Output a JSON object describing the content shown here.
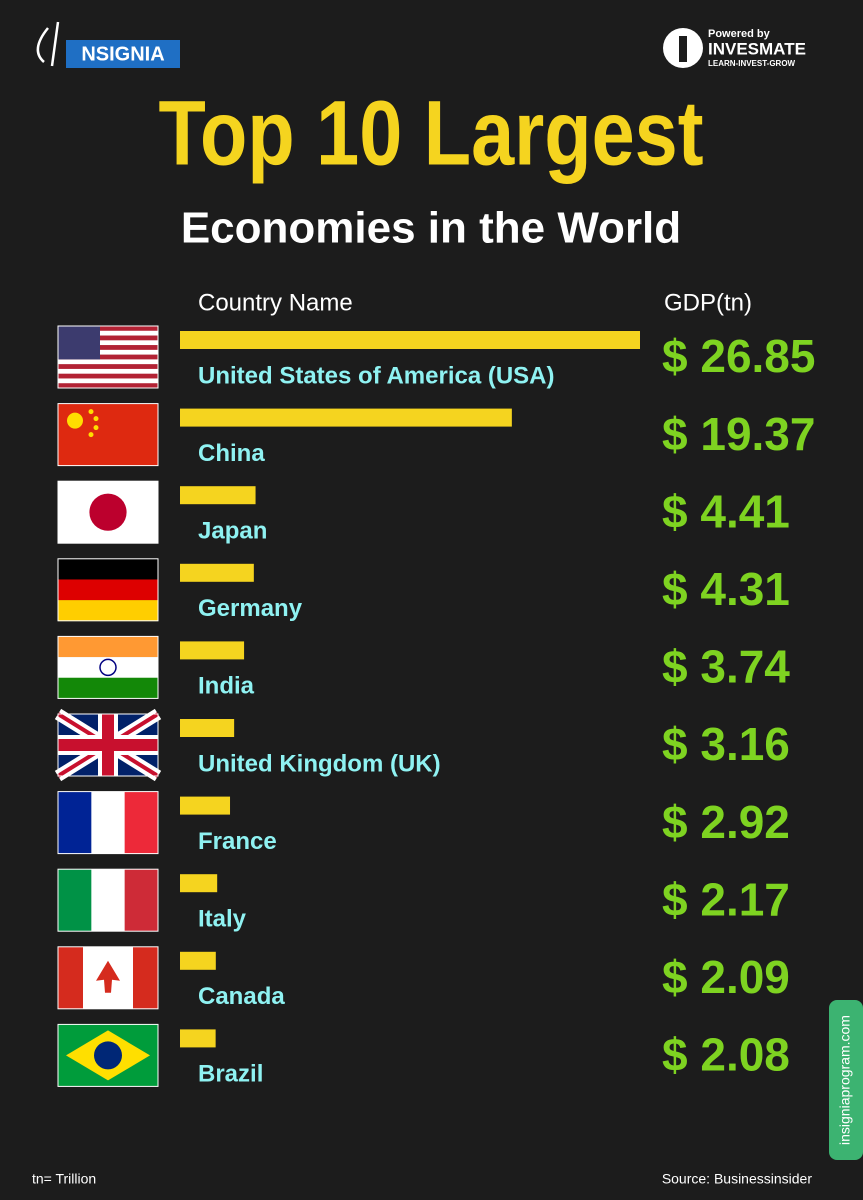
{
  "chart_data": {
    "type": "bar",
    "title": "Top 10 Largest",
    "subtitle": "Economies in the World",
    "category_header": "Country Name",
    "value_header": "GDP(tn)",
    "categories": [
      "United States of America (USA)",
      "China",
      "Japan",
      "Germany",
      "India",
      "United Kingdom (UK)",
      "France",
      "Italy",
      "Canada",
      "Brazil"
    ],
    "values": [
      26.85,
      19.37,
      4.41,
      4.31,
      3.74,
      3.16,
      2.92,
      2.17,
      2.09,
      2.08
    ],
    "value_labels": [
      "$ 26.85",
      "$ 19.37",
      "$ 4.41",
      "$ 4.31",
      "$ 3.74",
      "$ 3.16",
      "$ 2.92",
      "$ 2.17",
      "$ 2.09",
      "$ 2.08"
    ],
    "color": "#f5d41f",
    "footnote": "tn= Trillion",
    "source": "Source: Businessinsider"
  },
  "logo_left": "NSIGNIA",
  "logo_right": {
    "tagline": "Powered by",
    "name": "INVESMATE",
    "slogan": "LEARN-INVEST-GROW"
  },
  "side_tab": "insigniaprogram.com"
}
